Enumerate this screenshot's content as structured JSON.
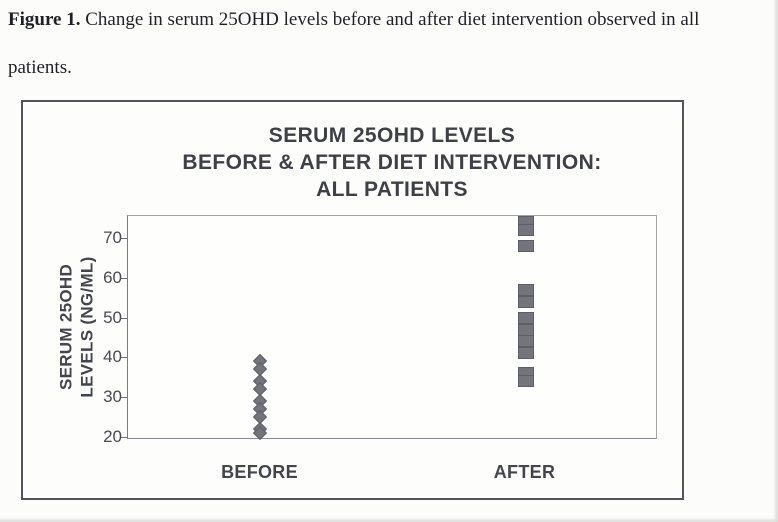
{
  "caption": {
    "label": "Figure 1.",
    "line1_rest": " Change in serum 25OHD levels before and after diet intervention observed in all",
    "line2": "patients."
  },
  "chart_data": {
    "type": "scatter",
    "title_lines": [
      "SERUM 25OHD LEVELS",
      "BEFORE & AFTER DIET INTERVENTION:",
      "ALL PATIENTS"
    ],
    "categories": [
      "BEFORE",
      "AFTER"
    ],
    "y_axis": {
      "label_line1": "SERUM 25OHD",
      "label_line2": "LEVELS (NG/ML)",
      "ticks": [
        20,
        30,
        40,
        50,
        60,
        70
      ],
      "range": [
        20,
        76
      ],
      "grid": false
    },
    "series": [
      {
        "name": "BEFORE",
        "marker": "diamond",
        "values": [
          39,
          37,
          34,
          32,
          29,
          27,
          25,
          22,
          21
        ]
      },
      {
        "name": "AFTER",
        "marker": "square",
        "values": [
          74,
          72,
          68,
          57,
          54,
          50,
          47,
          44,
          41,
          36,
          34
        ]
      }
    ],
    "legend": "none",
    "marker_color": "#73747c",
    "text_color": "#44454c"
  }
}
